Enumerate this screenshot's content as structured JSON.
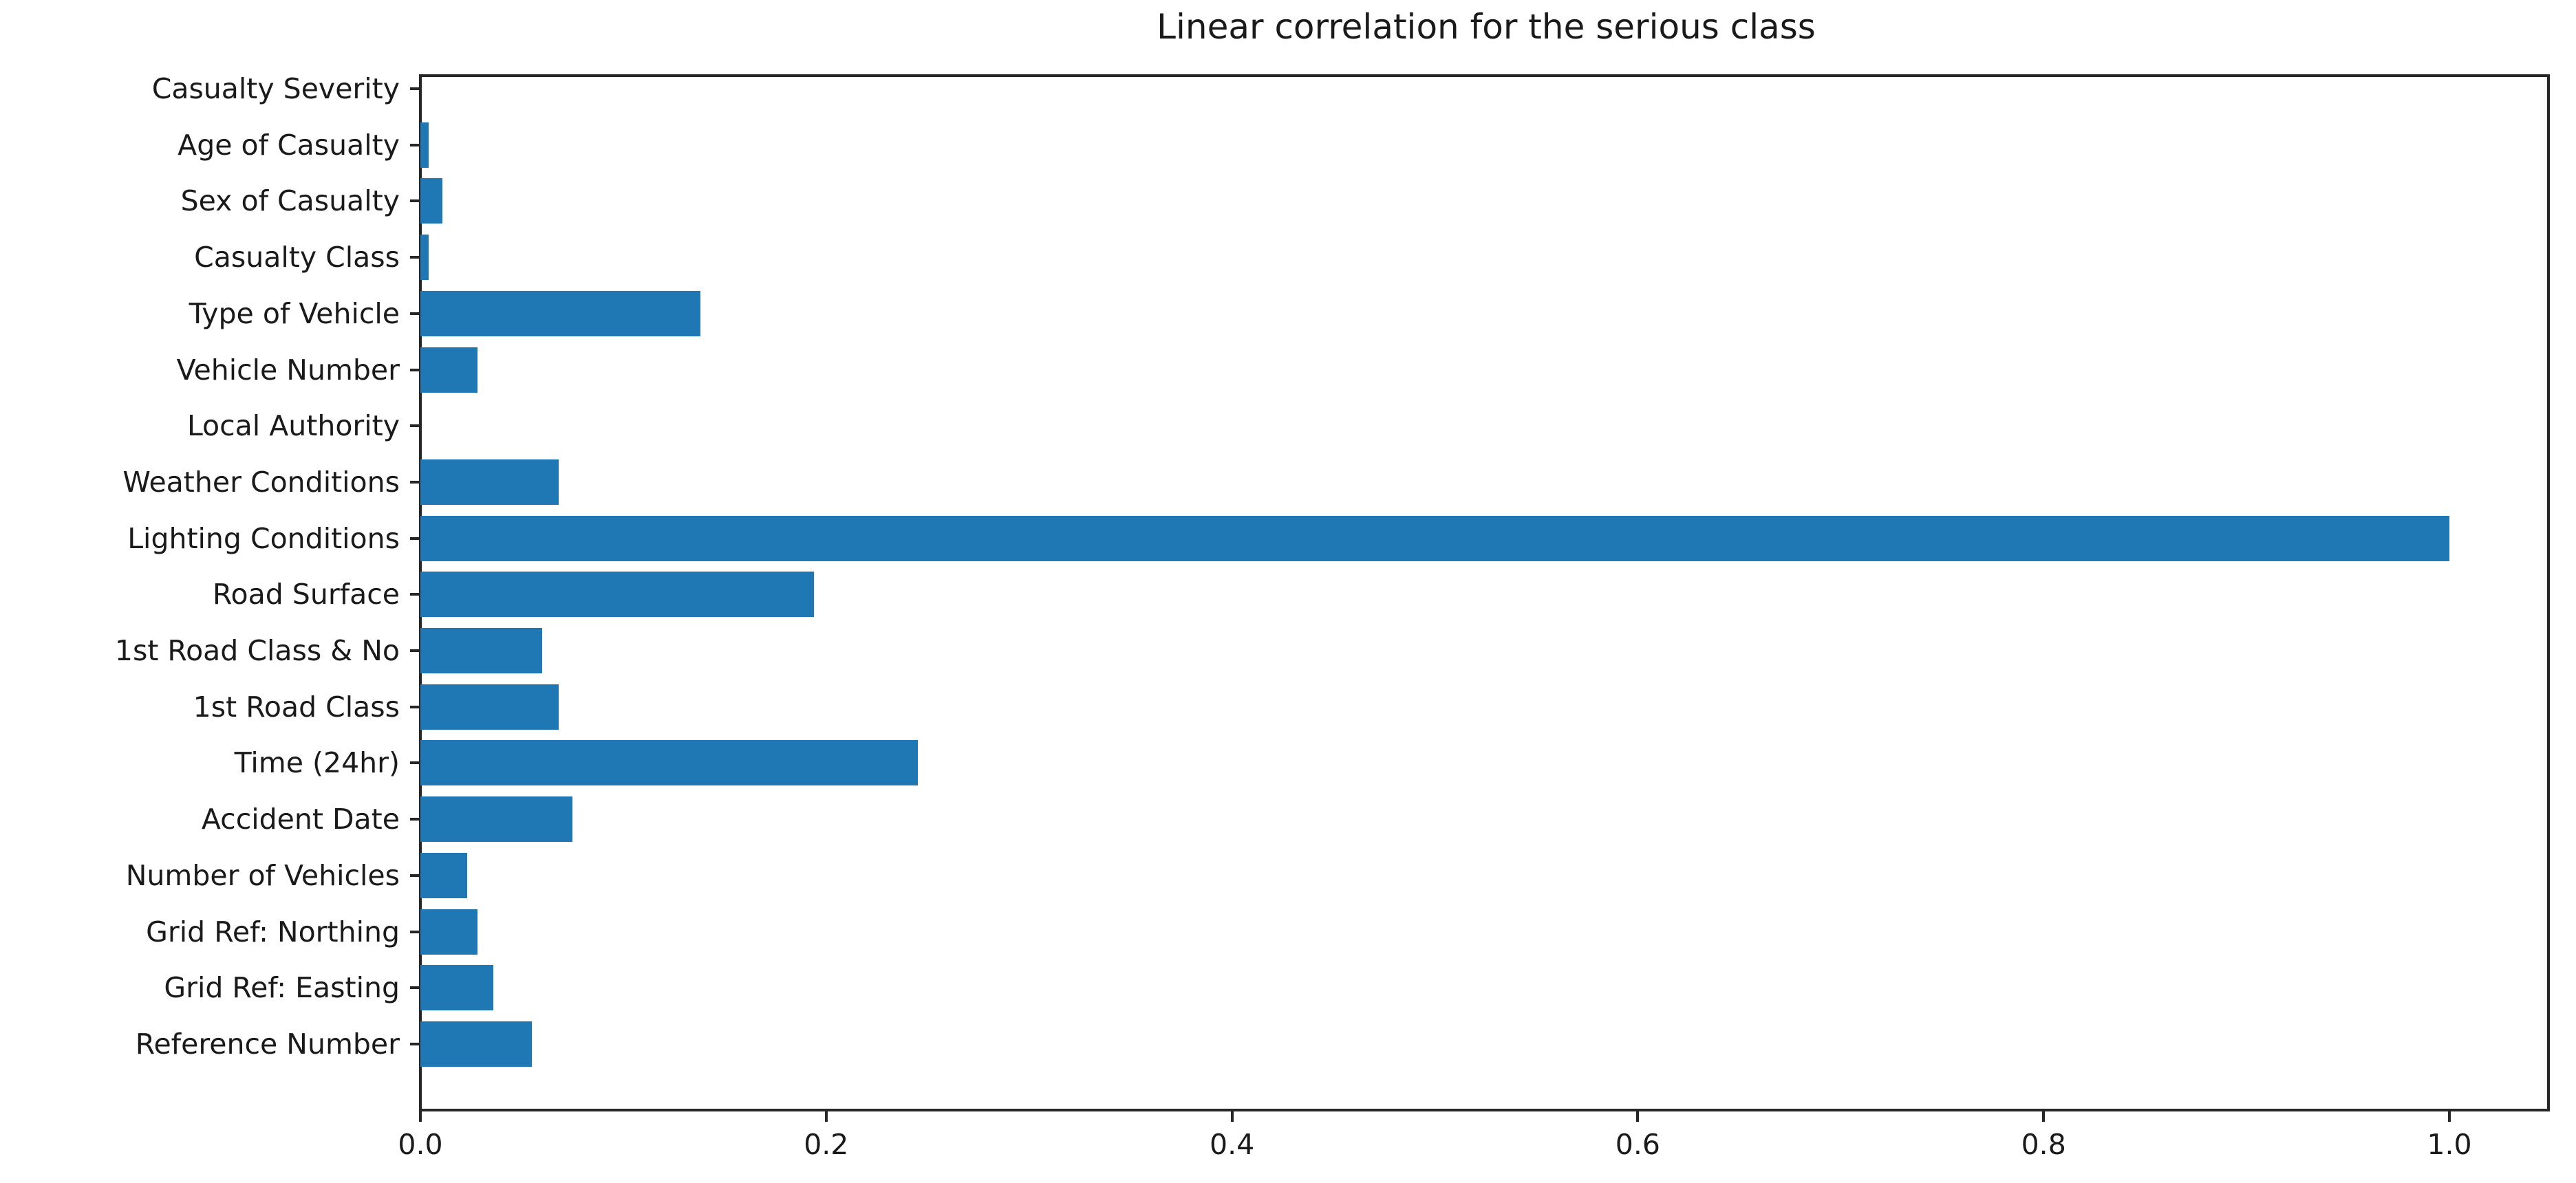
{
  "chart_data": {
    "type": "bar",
    "orientation": "horizontal",
    "title": "Linear correlation for the serious class",
    "categories": [
      "Casualty Severity",
      "Age of Casualty",
      "Sex of Casualty",
      "Casualty Class",
      "Type of Vehicle",
      "Vehicle Number",
      "Local Authority",
      "Weather Conditions",
      "Lighting Conditions",
      "Road Surface",
      "1st Road Class & No",
      "1st Road Class",
      "Time (24hr)",
      "Accident Date",
      "Number of Vehicles",
      "Grid Ref: Northing",
      "Grid Ref: Easting",
      "Reference Number"
    ],
    "values": [
      0.0,
      0.004,
      0.011,
      0.004,
      0.138,
      0.028,
      0.0,
      0.068,
      1.0,
      0.194,
      0.06,
      0.068,
      0.245,
      0.075,
      0.023,
      0.028,
      0.036,
      0.055
    ],
    "xlabel": "",
    "ylabel": "",
    "xlim": [
      0,
      1.05
    ],
    "x_ticks": [
      0.0,
      0.2,
      0.4,
      0.6,
      0.8,
      1.0
    ],
    "x_tick_labels": [
      "0.0",
      "0.2",
      "0.4",
      "0.6",
      "0.8",
      "1.0"
    ],
    "bar_color": "#1f77b4",
    "axis_color": "#262626",
    "text_color": "#1a1a1a",
    "grid": false,
    "legend": "none"
  }
}
